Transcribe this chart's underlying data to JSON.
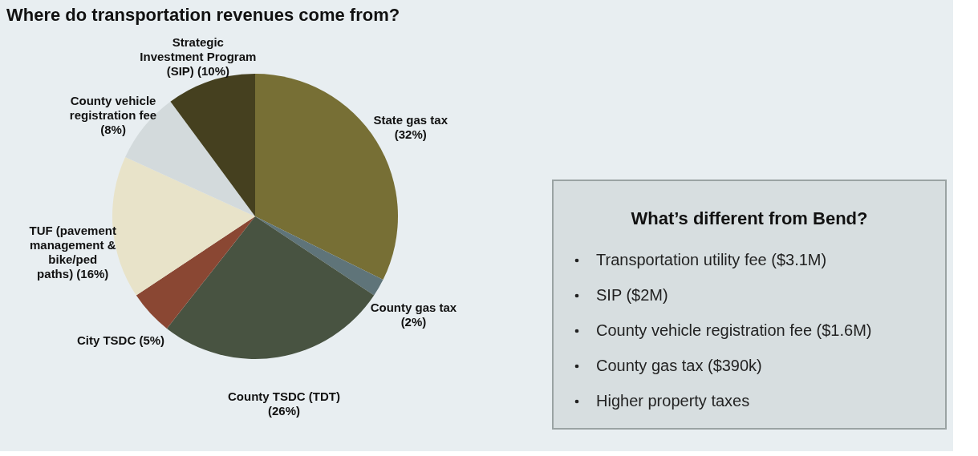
{
  "chart_data": [
    {
      "type": "pie",
      "title": "Where do transportation revenues come from?",
      "categories": [
        "State gas tax",
        "County gas tax",
        "County TSDC (TDT)",
        "City TSDC",
        "TUF (pavement management & bike/ped paths)",
        "County vehicle registration fee",
        "Strategic Investment Program (SIP)"
      ],
      "values": [
        32,
        2,
        26,
        5,
        16,
        8,
        10
      ],
      "value_labels": [
        "(32%)",
        "(2%)",
        "(26%)",
        "(5%)",
        "(16%)",
        "(8%)",
        "(10%)"
      ],
      "colors": [
        "#776f35",
        "#5f7479",
        "#485341",
        "#8a4733",
        "#e8e3c9",
        "#d3dadc",
        "#45401f"
      ],
      "legend": false
    },
    {
      "type": "other",
      "title": "What’s different from Bend?",
      "annotations": [
        "Transportation utility fee  ($3.1M)",
        "SIP ($2M)",
        "County vehicle registration fee ($1.6M)",
        "County gas tax ($390k)",
        "Higher property taxes"
      ]
    }
  ]
}
